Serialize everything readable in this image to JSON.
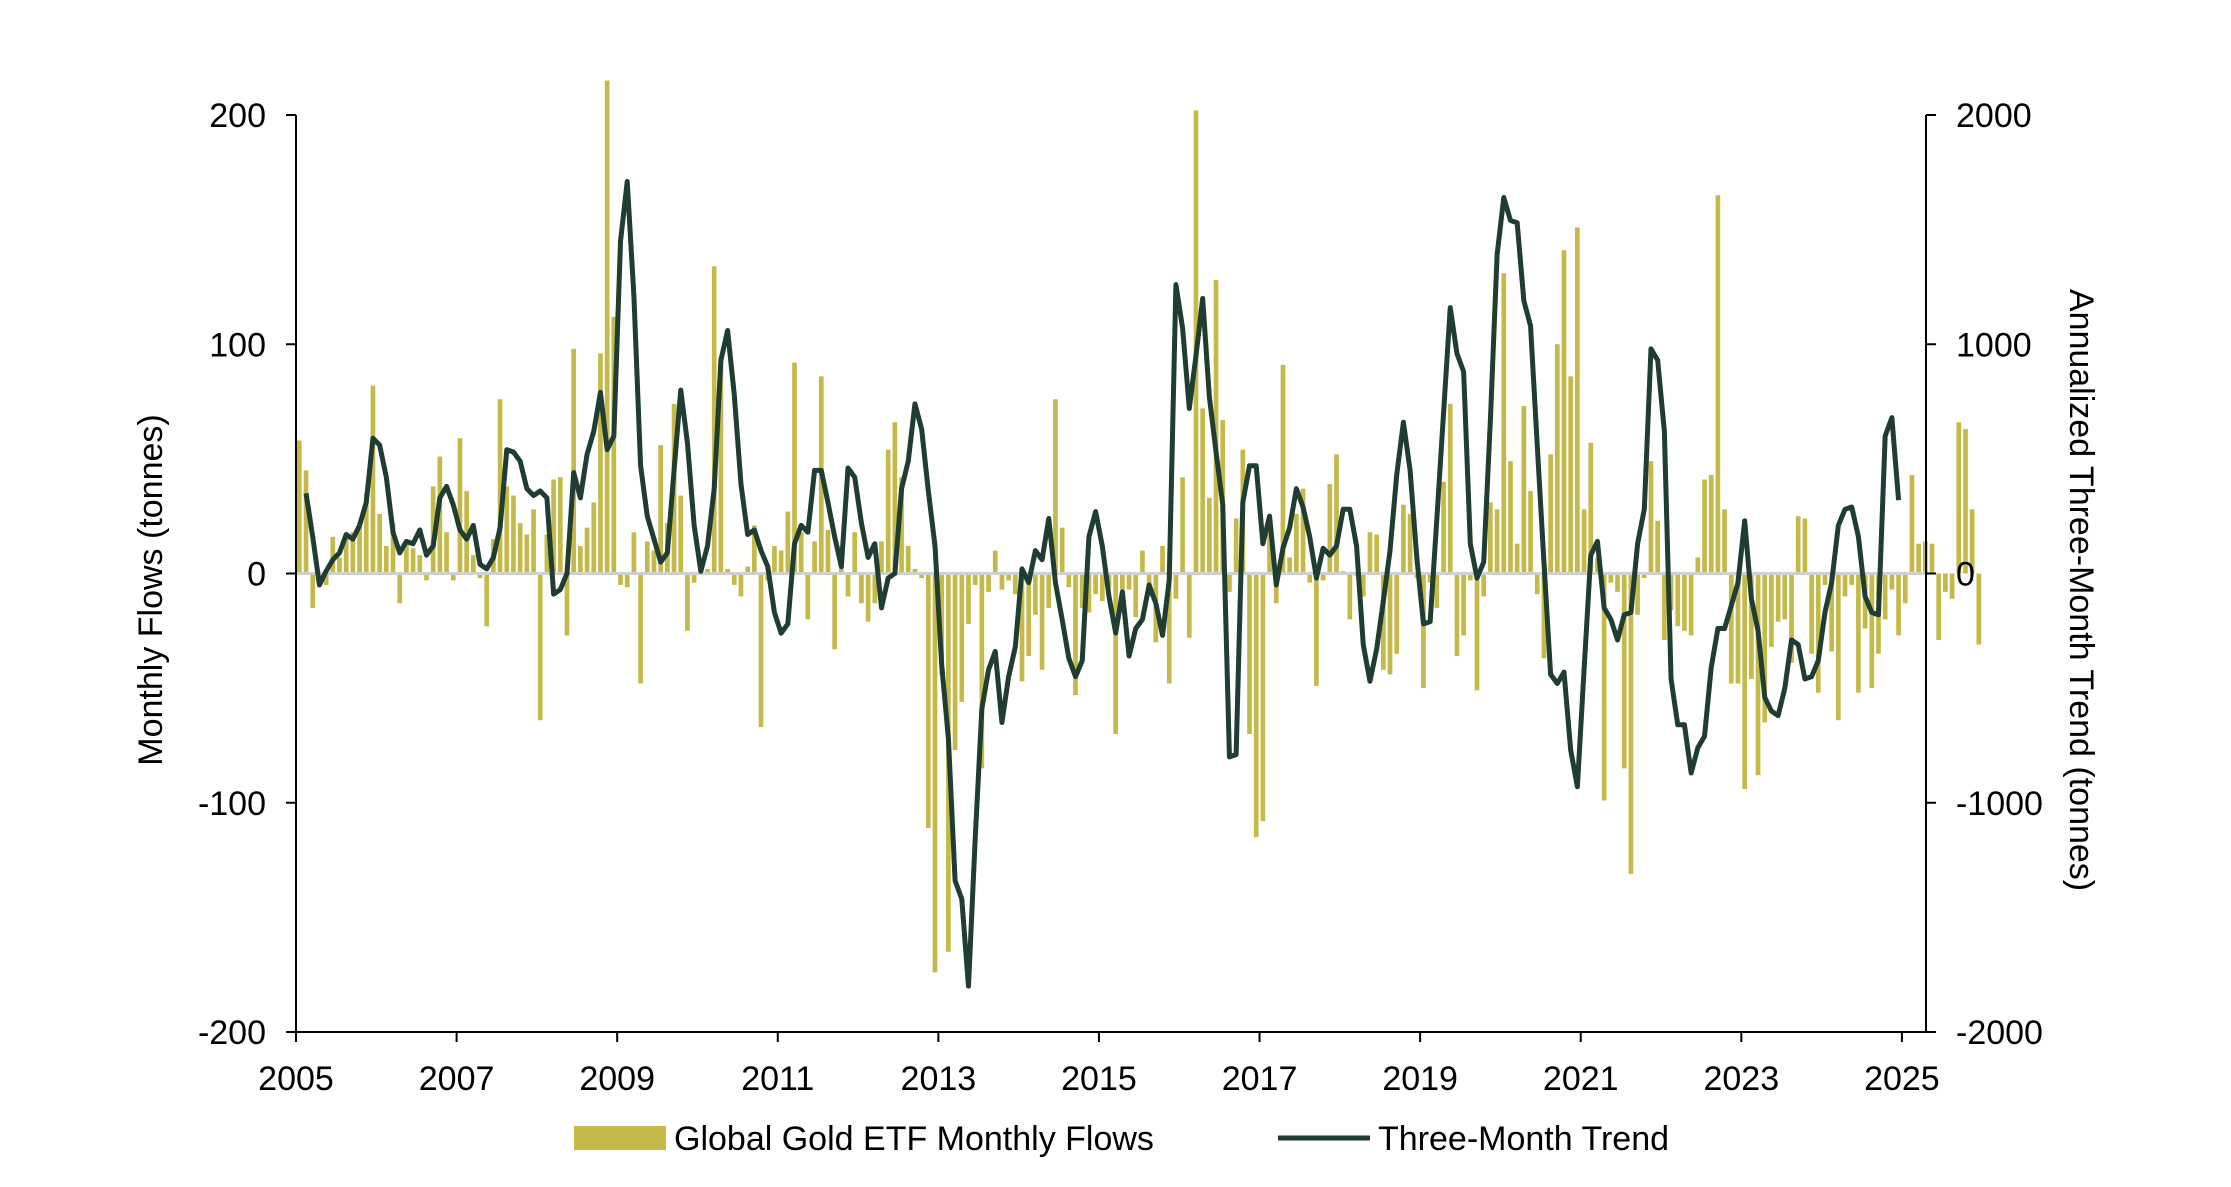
{
  "chart_data": {
    "type": "bar",
    "title": "",
    "x_axis": {
      "ticks": [
        "2005",
        "2007",
        "2009",
        "2011",
        "2013",
        "2015",
        "2017",
        "2019",
        "2021",
        "2023",
        "2025"
      ],
      "range": [
        2005,
        2025.3
      ]
    },
    "y_left": {
      "label": "Monthly Flows (tonnes)",
      "range": [
        -200,
        200
      ],
      "ticks": [
        "200",
        "100",
        "0",
        "-100",
        "-200"
      ]
    },
    "y_right": {
      "label": "Annualized Three-Month Trend (tonnes)",
      "range": [
        -2000,
        2000
      ],
      "ticks": [
        "2000",
        "1000",
        "0",
        "-1000",
        "-2000"
      ]
    },
    "legend_position": "bottom",
    "grid": false,
    "series": [
      {
        "name": "Global Gold ETF Monthly Flows",
        "type": "bar",
        "axis": "left",
        "color": "#c5b94a",
        "start": "2005-01",
        "interval": "month",
        "values": [
          58,
          45,
          -15,
          -4,
          -5,
          16,
          7,
          16,
          18,
          21,
          35,
          82,
          26,
          12,
          22,
          -13,
          14,
          11,
          8,
          -3,
          38,
          51,
          18,
          -3,
          59,
          36,
          8,
          -2,
          -23,
          15,
          76,
          38,
          34,
          22,
          17,
          28,
          -64,
          17,
          41,
          42,
          -27,
          98,
          12,
          20,
          31,
          96,
          215,
          112,
          -5,
          -6,
          18,
          -48,
          14,
          10,
          56,
          22,
          74,
          34,
          -25,
          -4,
          4,
          2,
          134,
          94,
          2,
          -5,
          -10,
          3,
          21,
          -67,
          -3,
          12,
          10,
          27,
          92,
          18,
          -20,
          14,
          86,
          19,
          -33,
          12,
          -10,
          18,
          -13,
          -21,
          -13,
          14,
          54,
          66,
          42,
          12,
          2,
          -2,
          -111,
          -174,
          -44,
          -165,
          -77,
          -56,
          -22,
          -5,
          -85,
          -8,
          10,
          -7,
          -3,
          -9,
          -47,
          -36,
          -18,
          -42,
          -15,
          76,
          20,
          -6,
          -53,
          -15,
          -17,
          -9,
          -12,
          -6,
          -70,
          -7,
          -7,
          -19,
          10,
          -10,
          -30,
          12,
          -48,
          -11,
          42,
          -28,
          202,
          72,
          33,
          128,
          67,
          -8,
          24,
          54,
          -70,
          -115,
          -108,
          18,
          -13,
          91,
          7,
          26,
          37,
          -4,
          -49,
          -3,
          39,
          52,
          1,
          -20,
          -1,
          -10,
          18,
          17,
          -42,
          -44,
          -35,
          30,
          26,
          -2,
          -50,
          -4,
          -15,
          40,
          74,
          -36,
          -27,
          -3,
          -51,
          -10,
          31,
          28,
          131,
          49,
          13,
          73,
          36,
          -9,
          -37,
          52,
          100,
          141,
          86,
          151,
          28,
          57,
          7,
          -99,
          -4,
          -8,
          -85,
          -131,
          -18,
          -2,
          49,
          23,
          -29,
          -16,
          -23,
          -25,
          -27,
          7,
          41,
          43,
          165,
          28,
          -48,
          -48,
          -94,
          -46,
          -88,
          -65,
          -32,
          -21,
          -20,
          -39,
          25,
          24,
          -35,
          -52,
          -5,
          -34,
          -64,
          -10,
          -5,
          -52,
          -24,
          -50,
          -35,
          -20,
          -7,
          -27,
          -13,
          43,
          13,
          14,
          13,
          -29,
          -8,
          -11,
          66,
          63,
          28,
          -31
        ]
      },
      {
        "name": "Three-Month Trend",
        "type": "line",
        "axis": "right",
        "color": "#1f3d31",
        "start": "2005-02",
        "interval": "month",
        "values": [
          350,
          160,
          -50,
          10,
          60,
          90,
          170,
          150,
          210,
          310,
          590,
          560,
          420,
          180,
          90,
          140,
          130,
          190,
          80,
          120,
          330,
          380,
          300,
          190,
          150,
          210,
          40,
          20,
          70,
          200,
          540,
          530,
          490,
          370,
          340,
          360,
          330,
          -90,
          -70,
          0,
          440,
          330,
          520,
          620,
          790,
          540,
          600,
          1450,
          1710,
          1210,
          470,
          250,
          150,
          50,
          90,
          450,
          800,
          570,
          210,
          10,
          120,
          370,
          930,
          1060,
          780,
          390,
          170,
          190,
          100,
          30,
          -170,
          -260,
          -220,
          130,
          210,
          180,
          450,
          450,
          310,
          160,
          30,
          460,
          420,
          220,
          70,
          130,
          -150,
          -20,
          0,
          370,
          490,
          740,
          630,
          360,
          120,
          -400,
          -720,
          -1340,
          -1420,
          -1800,
          -1160,
          -590,
          -420,
          -340,
          -650,
          -450,
          -320,
          20,
          -40,
          100,
          60,
          240,
          -40,
          -200,
          -370,
          -450,
          -380,
          160,
          270,
          120,
          -100,
          -260,
          -80,
          -360,
          -240,
          -200,
          -50,
          -130,
          -270,
          -30,
          1260,
          1070,
          720,
          950,
          1200,
          770,
          530,
          300,
          -800,
          -790,
          310,
          470,
          470,
          130,
          250,
          -50,
          110,
          200,
          370,
          290,
          160,
          -20,
          110,
          80,
          120,
          280,
          280,
          120,
          -310,
          -470,
          -330,
          -120,
          100,
          430,
          660,
          450,
          70,
          -220,
          -210,
          240,
          700,
          1160,
          960,
          880,
          130,
          -20,
          50,
          670,
          1390,
          1640,
          1540,
          1530,
          1190,
          1080,
          560,
          50,
          -440,
          -480,
          -430,
          -770,
          -930,
          -420,
          80,
          140,
          -150,
          -200,
          -290,
          -180,
          -170,
          130,
          280,
          980,
          930,
          620,
          -460,
          -660,
          -660,
          -870,
          -760,
          -710,
          -410,
          -240,
          -240,
          -140,
          -40,
          230,
          -110,
          -250,
          -540,
          -600,
          -620,
          -500,
          -290,
          -310,
          -460,
          -450,
          -380,
          -170,
          -40,
          210,
          280,
          290,
          160,
          -100,
          -170,
          -180,
          600,
          680,
          320
        ]
      }
    ]
  }
}
